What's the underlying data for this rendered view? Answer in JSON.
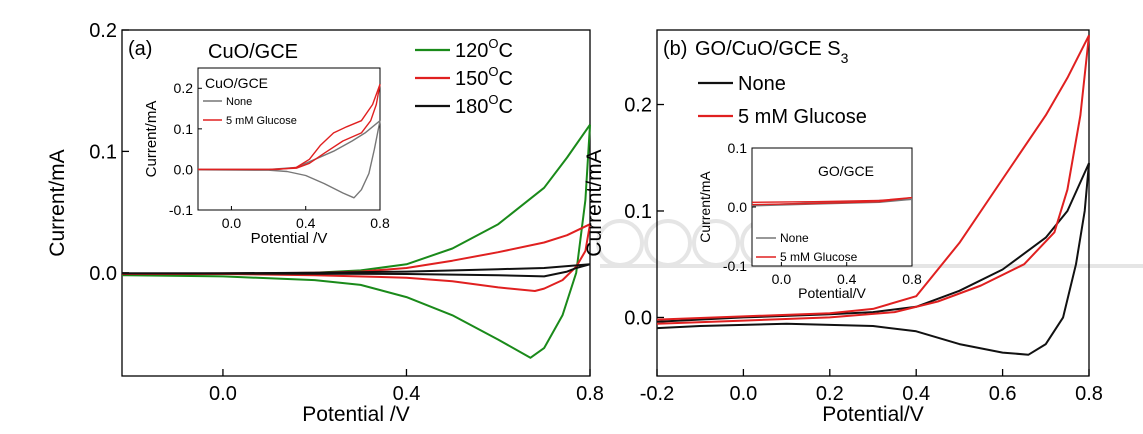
{
  "chart_data": [
    {
      "type": "line",
      "panel_label": "(a)",
      "title": "CuO/GCE",
      "xlabel": "Potential /V",
      "ylabel": "Current/mA",
      "xlim": [
        -0.22,
        0.8
      ],
      "ylim": [
        -0.085,
        0.2
      ],
      "xticks": [
        "0.0",
        "0.4",
        "0.8"
      ],
      "yticks": [
        "0.0",
        "0.1",
        "0.2"
      ],
      "legend_position": "top-right",
      "legend_unit": "C",
      "legend_superscript": "O",
      "series": [
        {
          "name": "120",
          "color": "#1a8a1a",
          "forward": [
            [
              -0.22,
              -0.0015
            ],
            [
              0.0,
              -0.001
            ],
            [
              0.2,
              0.0
            ],
            [
              0.3,
              0.002
            ],
            [
              0.4,
              0.007
            ],
            [
              0.5,
              0.02
            ],
            [
              0.6,
              0.04
            ],
            [
              0.7,
              0.07
            ],
            [
              0.75,
              0.095
            ],
            [
              0.8,
              0.122
            ]
          ],
          "reverse": [
            [
              0.8,
              0.122
            ],
            [
              0.79,
              0.06
            ],
            [
              0.77,
              0.0
            ],
            [
              0.74,
              -0.035
            ],
            [
              0.7,
              -0.062
            ],
            [
              0.67,
              -0.07
            ],
            [
              0.6,
              -0.055
            ],
            [
              0.5,
              -0.035
            ],
            [
              0.4,
              -0.02
            ],
            [
              0.3,
              -0.01
            ],
            [
              0.2,
              -0.006
            ],
            [
              0.0,
              -0.003
            ],
            [
              -0.22,
              -0.002
            ]
          ]
        },
        {
          "name": "150",
          "color": "#e02020",
          "forward": [
            [
              -0.22,
              -0.001
            ],
            [
              0.0,
              -0.0005
            ],
            [
              0.2,
              0.0
            ],
            [
              0.3,
              0.001
            ],
            [
              0.4,
              0.004
            ],
            [
              0.5,
              0.01
            ],
            [
              0.6,
              0.017
            ],
            [
              0.7,
              0.025
            ],
            [
              0.75,
              0.031
            ],
            [
              0.8,
              0.04
            ]
          ],
          "reverse": [
            [
              0.8,
              0.04
            ],
            [
              0.79,
              0.018
            ],
            [
              0.77,
              0.005
            ],
            [
              0.74,
              -0.006
            ],
            [
              0.7,
              -0.013
            ],
            [
              0.68,
              -0.015
            ],
            [
              0.6,
              -0.012
            ],
            [
              0.5,
              -0.007
            ],
            [
              0.4,
              -0.004
            ],
            [
              0.2,
              -0.002
            ],
            [
              0.0,
              -0.001
            ],
            [
              -0.22,
              -0.001
            ]
          ]
        },
        {
          "name": "180",
          "color": "#111111",
          "forward": [
            [
              -0.22,
              -0.0005
            ],
            [
              0.0,
              -0.0003
            ],
            [
              0.2,
              0.0
            ],
            [
              0.4,
              0.001
            ],
            [
              0.6,
              0.003
            ],
            [
              0.7,
              0.004
            ],
            [
              0.8,
              0.007
            ]
          ],
          "reverse": [
            [
              0.8,
              0.007
            ],
            [
              0.79,
              0.006
            ],
            [
              0.77,
              0.004
            ],
            [
              0.75,
              0.001
            ],
            [
              0.7,
              -0.003
            ],
            [
              0.6,
              -0.002
            ],
            [
              0.4,
              -0.001
            ],
            [
              0.0,
              -0.0006
            ],
            [
              -0.22,
              -0.0005
            ]
          ]
        }
      ],
      "inset": {
        "title": "CuO/GCE",
        "xlabel": "Potential /V",
        "ylabel": "Current/mA",
        "xlim": [
          -0.18,
          0.8
        ],
        "ylim": [
          -0.1,
          0.25
        ],
        "xticks": [
          "0.0",
          "0.4",
          "0.8"
        ],
        "yticks": [
          "-0.1",
          "0.0",
          "0.1",
          "0.2"
        ],
        "series": [
          {
            "name": "None",
            "color": "#777777",
            "forward": [
              [
                -0.18,
                0.0
              ],
              [
                0.2,
                0.0
              ],
              [
                0.35,
                0.005
              ],
              [
                0.45,
                0.025
              ],
              [
                0.55,
                0.045
              ],
              [
                0.65,
                0.07
              ],
              [
                0.72,
                0.09
              ],
              [
                0.8,
                0.12
              ]
            ],
            "reverse": [
              [
                0.8,
                0.12
              ],
              [
                0.77,
                0.05
              ],
              [
                0.74,
                -0.01
              ],
              [
                0.7,
                -0.05
              ],
              [
                0.66,
                -0.07
              ],
              [
                0.6,
                -0.058
              ],
              [
                0.5,
                -0.035
              ],
              [
                0.4,
                -0.015
              ],
              [
                0.3,
                -0.005
              ],
              [
                0.2,
                -0.002
              ],
              [
                -0.18,
                -0.001
              ]
            ]
          },
          {
            "name": "5 mM Glucose",
            "color": "#e02020",
            "forward": [
              [
                -0.18,
                0.0
              ],
              [
                0.25,
                0.0
              ],
              [
                0.35,
                0.005
              ],
              [
                0.42,
                0.025
              ],
              [
                0.48,
                0.06
              ],
              [
                0.55,
                0.09
              ],
              [
                0.62,
                0.105
              ],
              [
                0.7,
                0.12
              ],
              [
                0.76,
                0.16
              ],
              [
                0.8,
                0.21
              ]
            ],
            "reverse": [
              [
                0.8,
                0.21
              ],
              [
                0.78,
                0.16
              ],
              [
                0.75,
                0.12
              ],
              [
                0.7,
                0.09
              ],
              [
                0.6,
                0.07
              ],
              [
                0.5,
                0.04
              ],
              [
                0.42,
                0.015
              ],
              [
                0.35,
                0.003
              ],
              [
                0.2,
                0.0
              ],
              [
                -0.18,
                0.0
              ]
            ]
          }
        ]
      }
    },
    {
      "type": "line",
      "panel_label": "(b)",
      "title": "GO/CuO/GCE S",
      "title_subscript": "3",
      "xlabel": "Potential/V",
      "ylabel": "Current/mA",
      "xlim": [
        -0.2,
        0.8
      ],
      "ylim": [
        -0.055,
        0.27
      ],
      "xticks": [
        "-0.2",
        "0.0",
        "0.2",
        "0.4",
        "0.6",
        "0.8"
      ],
      "yticks": [
        "0.0",
        "0.1",
        "0.2"
      ],
      "legend_position": "top-left",
      "series": [
        {
          "name": "None",
          "color": "#111111",
          "forward": [
            [
              -0.2,
              -0.004
            ],
            [
              0.0,
              0.0
            ],
            [
              0.2,
              0.003
            ],
            [
              0.3,
              0.005
            ],
            [
              0.4,
              0.01
            ],
            [
              0.5,
              0.025
            ],
            [
              0.6,
              0.045
            ],
            [
              0.7,
              0.075
            ],
            [
              0.75,
              0.1
            ],
            [
              0.8,
              0.145
            ]
          ],
          "reverse": [
            [
              0.8,
              0.145
            ],
            [
              0.79,
              0.1
            ],
            [
              0.77,
              0.05
            ],
            [
              0.74,
              0.0
            ],
            [
              0.7,
              -0.025
            ],
            [
              0.66,
              -0.035
            ],
            [
              0.6,
              -0.033
            ],
            [
              0.5,
              -0.025
            ],
            [
              0.4,
              -0.013
            ],
            [
              0.3,
              -0.008
            ],
            [
              0.1,
              -0.006
            ],
            [
              -0.1,
              -0.008
            ],
            [
              -0.2,
              -0.01
            ]
          ]
        },
        {
          "name": "5 mM Glucose",
          "color": "#e02020",
          "forward": [
            [
              -0.2,
              -0.002
            ],
            [
              0.0,
              0.001
            ],
            [
              0.2,
              0.004
            ],
            [
              0.3,
              0.008
            ],
            [
              0.4,
              0.02
            ],
            [
              0.5,
              0.07
            ],
            [
              0.6,
              0.13
            ],
            [
              0.7,
              0.19
            ],
            [
              0.75,
              0.225
            ],
            [
              0.8,
              0.265
            ]
          ],
          "reverse": [
            [
              0.8,
              0.265
            ],
            [
              0.78,
              0.19
            ],
            [
              0.75,
              0.12
            ],
            [
              0.72,
              0.08
            ],
            [
              0.65,
              0.05
            ],
            [
              0.55,
              0.03
            ],
            [
              0.45,
              0.015
            ],
            [
              0.35,
              0.005
            ],
            [
              0.2,
              0.0
            ],
            [
              0.0,
              -0.003
            ],
            [
              -0.2,
              -0.006
            ]
          ]
        }
      ],
      "inset": {
        "title": "GO/GCE",
        "xlabel": "Potential/V",
        "ylabel": "Current/mA",
        "xlim": [
          -0.18,
          0.8
        ],
        "ylim": [
          -0.1,
          0.1
        ],
        "xticks": [
          "0.0",
          "0.4",
          "0.8"
        ],
        "yticks": [
          "-0.1",
          "0.0",
          "0.1"
        ],
        "series": [
          {
            "name": "None",
            "color": "#777777",
            "forward": [
              [
                -0.18,
                0.003
              ],
              [
                0.8,
                0.013
              ]
            ],
            "reverse": [
              [
                0.8,
                0.013
              ],
              [
                0.6,
                0.008
              ],
              [
                0.2,
                0.005
              ],
              [
                -0.18,
                0.002
              ]
            ]
          },
          {
            "name": "5 mM Glucose",
            "color": "#e02020",
            "forward": [
              [
                -0.18,
                0.008
              ],
              [
                0.2,
                0.009
              ],
              [
                0.6,
                0.011
              ],
              [
                0.8,
                0.016
              ]
            ],
            "reverse": [
              [
                0.8,
                0.016
              ],
              [
                0.6,
                0.009
              ],
              [
                0.2,
                0.006
              ],
              [
                -0.18,
                0.004
              ]
            ]
          }
        ]
      }
    }
  ]
}
